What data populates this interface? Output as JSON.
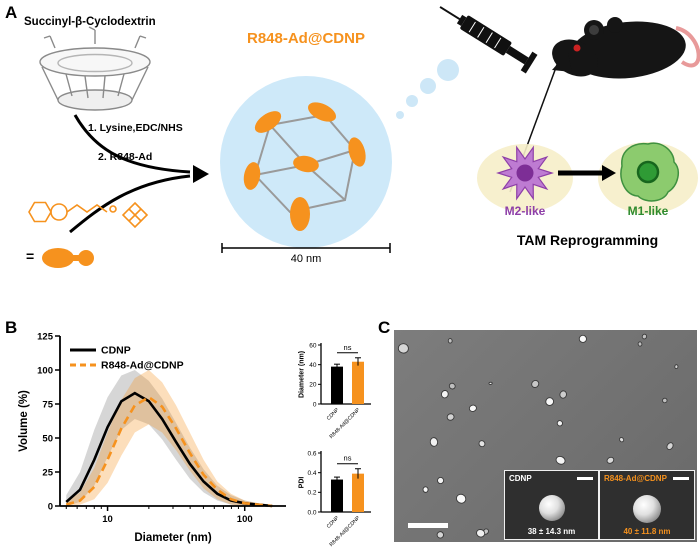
{
  "figure": {
    "panel_a_label": "A",
    "panel_b_label": "B",
    "panel_c_label": "C"
  },
  "panel_a": {
    "reactant_label": "Succinyl-β-Cyclodextrin",
    "step_1": "1. Lysine,EDC/NHS",
    "step_2": "2. R848-Ad",
    "equals_sign": "=",
    "product_title": "R848-Ad@CDNP",
    "scale_bar_label": "40 nm",
    "m2_cell_label": "M2-like",
    "m1_cell_label": "M1-like",
    "caption": "TAM Reprogramming",
    "colors": {
      "accent_orange": "#F6921E",
      "m2_purple": "#8E3FA8",
      "m1_green": "#2E8B2E",
      "particle_blue": "#CEE9F9"
    }
  },
  "panel_c": {
    "inset_1": {
      "label": "CDNP",
      "measurement": "38 ± 14.3 nm"
    },
    "inset_2": {
      "label": "R848-Ad@CDNP",
      "measurement": "40 ± 11.8 nm"
    }
  },
  "chart_data": [
    {
      "type": "line",
      "title": "",
      "xlabel": "Diameter (nm)",
      "ylabel": "Volume (%)",
      "xscale": "log",
      "xlim": [
        4.5,
        200
      ],
      "ylim": [
        0,
        125
      ],
      "yticks": [
        0,
        25,
        50,
        75,
        100,
        125
      ],
      "xticks": [
        10,
        100
      ],
      "legend_position": "top-left",
      "grid": false,
      "x": [
        5,
        6.3,
        8,
        10,
        12.6,
        15.8,
        20,
        25,
        31.6,
        39.8,
        50.1,
        63.1,
        79.4,
        100,
        125.9,
        158.5
      ],
      "series": [
        {
          "name": "CDNP",
          "color": "#000000",
          "dash": "",
          "band_color": "#8a8a8a",
          "band_opacity": 0.35,
          "values": [
            3,
            12,
            34,
            58,
            77,
            83,
            77,
            64,
            47,
            31,
            18,
            9,
            4,
            2,
            1,
            0
          ],
          "upper": [
            8,
            25,
            56,
            80,
            96,
            100,
            92,
            79,
            61,
            43,
            27,
            15,
            8,
            4,
            2,
            1
          ],
          "lower": [
            0,
            3,
            15,
            36,
            56,
            64,
            60,
            49,
            34,
            20,
            10,
            4,
            1,
            0,
            0,
            0
          ]
        },
        {
          "name": "R848-Ad@CDNP",
          "color": "#F6921E",
          "dash": "8 5",
          "band_color": "#F6921E",
          "band_opacity": 0.3,
          "values": [
            1,
            4,
            14,
            34,
            57,
            74,
            80,
            73,
            57,
            39,
            23,
            12,
            5,
            2,
            1,
            0
          ],
          "upper": [
            3,
            10,
            28,
            54,
            78,
            94,
            100,
            91,
            74,
            54,
            34,
            18,
            9,
            4,
            2,
            1
          ],
          "lower": [
            0,
            1,
            5,
            17,
            37,
            54,
            60,
            54,
            41,
            26,
            13,
            5,
            1,
            0,
            0,
            0
          ]
        }
      ]
    },
    {
      "type": "bar",
      "ylabel": "Diameter (nm)",
      "categories": [
        "CDNP",
        "R848-Ad@CDNP"
      ],
      "values": [
        38,
        43
      ],
      "errors": [
        2.5,
        4
      ],
      "colors": [
        "#000000",
        "#F6921E"
      ],
      "ylim": [
        0,
        60
      ],
      "yticks": [
        0,
        20,
        40,
        60
      ],
      "sig_label": "ns"
    },
    {
      "type": "bar",
      "ylabel": "PDI",
      "categories": [
        "CDNP",
        "R848-Ad@CDNP"
      ],
      "values": [
        0.33,
        0.39
      ],
      "errors": [
        0.025,
        0.05
      ],
      "colors": [
        "#000000",
        "#F6921E"
      ],
      "ylim": [
        0,
        0.6
      ],
      "yticks": [
        0,
        0.2,
        0.4,
        0.6
      ],
      "sig_label": "ns"
    }
  ]
}
